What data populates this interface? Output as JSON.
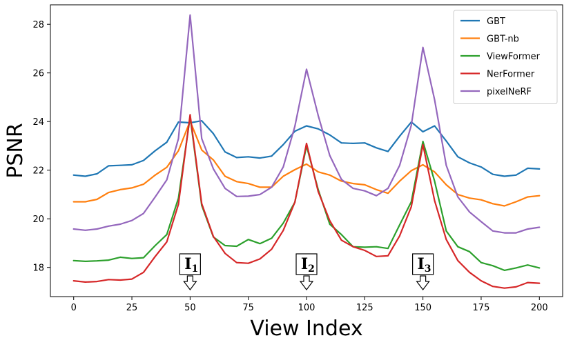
{
  "chart_data": {
    "type": "line",
    "title": "",
    "xlabel": "View Index",
    "ylabel": "PSNR",
    "xlim": [
      -10,
      210
    ],
    "ylim": [
      16.8,
      28.8
    ],
    "xticks": [
      0,
      25,
      50,
      75,
      100,
      125,
      150,
      175,
      200
    ],
    "yticks": [
      18,
      20,
      22,
      24,
      26,
      28
    ],
    "grid": false,
    "legend_position": "top-right",
    "x": [
      0,
      5,
      10,
      15,
      20,
      25,
      30,
      35,
      40,
      45,
      50,
      55,
      60,
      65,
      70,
      75,
      80,
      85,
      90,
      95,
      100,
      105,
      110,
      115,
      120,
      125,
      130,
      135,
      140,
      145,
      150,
      155,
      160,
      165,
      170,
      175,
      180,
      185,
      190,
      195,
      200
    ],
    "series": [
      {
        "name": "GBT",
        "color": "#1f77b4",
        "values": [
          21.8,
          21.75,
          21.85,
          22.18,
          22.2,
          22.22,
          22.4,
          22.8,
          23.15,
          23.98,
          23.95,
          24.03,
          23.5,
          22.75,
          22.52,
          22.55,
          22.5,
          22.58,
          23.05,
          23.6,
          23.82,
          23.7,
          23.45,
          23.12,
          23.1,
          23.12,
          22.92,
          22.77,
          23.4,
          23.98,
          23.58,
          23.82,
          23.2,
          22.55,
          22.3,
          22.13,
          21.83,
          21.75,
          21.8,
          22.08,
          22.05
        ]
      },
      {
        "name": "GBT-nb",
        "color": "#ff7f0e",
        "values": [
          20.7,
          20.7,
          20.8,
          21.08,
          21.2,
          21.27,
          21.42,
          21.8,
          22.12,
          22.8,
          24.02,
          22.83,
          22.42,
          21.75,
          21.53,
          21.45,
          21.3,
          21.3,
          21.75,
          22.02,
          22.25,
          21.93,
          21.8,
          21.55,
          21.45,
          21.4,
          21.2,
          21.05,
          21.55,
          21.98,
          22.22,
          21.93,
          21.4,
          21.0,
          20.85,
          20.78,
          20.62,
          20.53,
          20.7,
          20.9,
          20.95
        ]
      },
      {
        "name": "ViewFormer",
        "color": "#2ca02c",
        "values": [
          18.28,
          18.25,
          18.27,
          18.3,
          18.42,
          18.37,
          18.4,
          18.9,
          19.35,
          20.85,
          24.2,
          20.55,
          19.25,
          18.9,
          18.87,
          19.15,
          18.98,
          19.2,
          19.82,
          20.68,
          23.0,
          21.2,
          19.78,
          19.35,
          18.85,
          18.83,
          18.85,
          18.78,
          19.75,
          20.7,
          23.18,
          21.55,
          19.5,
          18.85,
          18.65,
          18.2,
          18.07,
          17.88,
          17.98,
          18.1,
          17.98
        ]
      },
      {
        "name": "NerFormer",
        "color": "#d62728",
        "values": [
          17.45,
          17.4,
          17.42,
          17.5,
          17.48,
          17.52,
          17.8,
          18.45,
          19.05,
          20.6,
          24.28,
          20.62,
          19.27,
          18.58,
          18.2,
          18.17,
          18.35,
          18.75,
          19.52,
          20.68,
          23.1,
          21.12,
          19.92,
          19.12,
          18.85,
          18.7,
          18.45,
          18.48,
          19.3,
          20.5,
          23.05,
          20.75,
          19.15,
          18.28,
          17.8,
          17.45,
          17.22,
          17.15,
          17.2,
          17.38,
          17.35
        ]
      },
      {
        "name": "pixelNeRF",
        "color": "#9467bd",
        "values": [
          19.58,
          19.53,
          19.58,
          19.7,
          19.78,
          19.93,
          20.22,
          20.9,
          21.6,
          23.3,
          28.38,
          23.3,
          22.05,
          21.25,
          20.92,
          20.93,
          21.0,
          21.3,
          22.13,
          23.8,
          26.15,
          24.25,
          22.6,
          21.62,
          21.25,
          21.15,
          20.95,
          21.25,
          22.2,
          23.85,
          27.05,
          24.9,
          22.2,
          20.9,
          20.28,
          19.88,
          19.5,
          19.42,
          19.42,
          19.58,
          19.65
        ]
      }
    ],
    "annotations": [
      {
        "label": "I",
        "subscript": "1",
        "x": 50
      },
      {
        "label": "I",
        "subscript": "2",
        "x": 100
      },
      {
        "label": "I",
        "subscript": "3",
        "x": 150
      }
    ]
  }
}
